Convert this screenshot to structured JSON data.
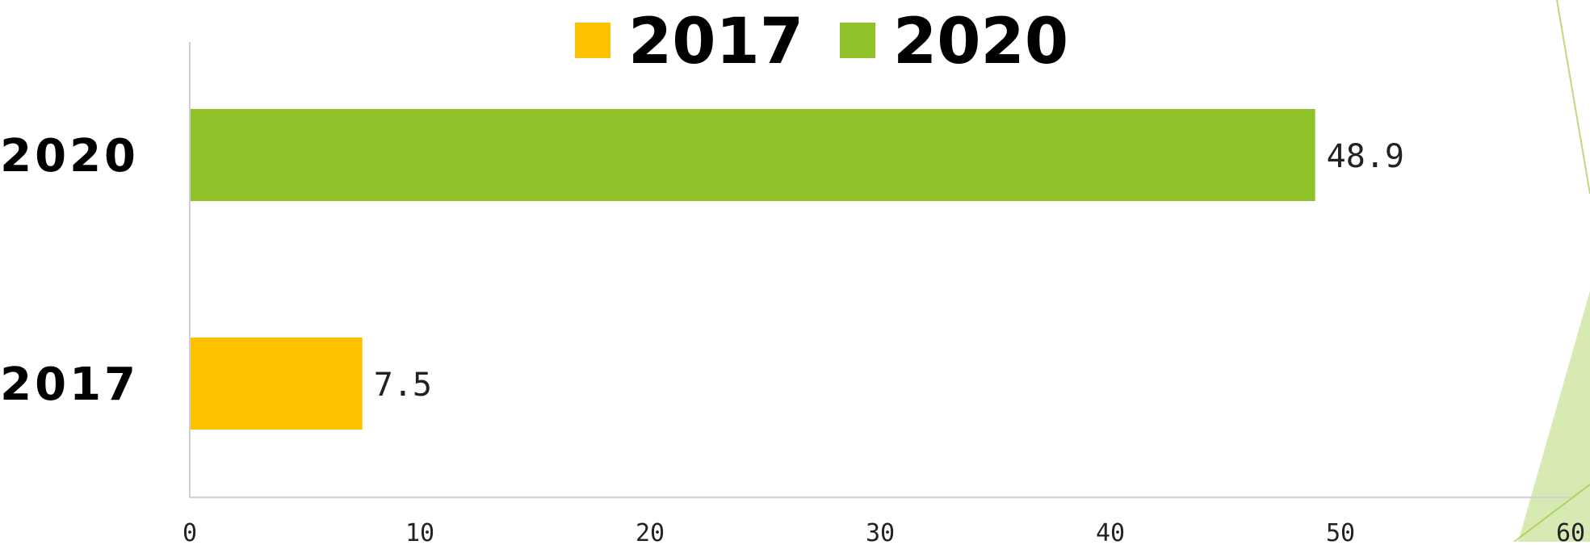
{
  "chart_data": {
    "type": "bar",
    "orientation": "horizontal",
    "categories": [
      "2017",
      "2020"
    ],
    "series": [
      {
        "name": "2017",
        "values": [
          7.5,
          null
        ],
        "color": "#FFC000"
      },
      {
        "name": "2020",
        "values": [
          null,
          48.9
        ],
        "color": "#8FC228"
      }
    ],
    "data_labels": [
      "7.5",
      "48.9"
    ],
    "xlim": [
      0,
      60
    ],
    "x_ticks": [
      "0",
      "10",
      "20",
      "30",
      "40",
      "50",
      "60"
    ],
    "legend_position": "top",
    "grid": false
  },
  "legend": {
    "items": [
      {
        "label": "2017",
        "color": "#FFC000"
      },
      {
        "label": "2020",
        "color": "#8FC228"
      }
    ]
  },
  "theme": {
    "decor_accent": "#8FC228",
    "axis_color": "#D0D0D0"
  }
}
